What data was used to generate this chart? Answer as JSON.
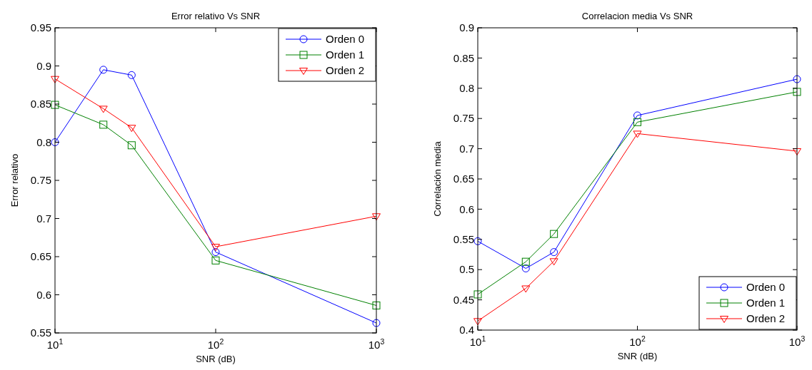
{
  "chart_data": [
    {
      "type": "line",
      "title": "Error relativo Vs SNR",
      "xlabel": "SNR (dB)",
      "ylabel": "Error relativo",
      "log": "x",
      "x": [
        10,
        20,
        30,
        100,
        1000
      ],
      "xlim": [
        10,
        1000
      ],
      "xticks": [
        {
          "value": 10,
          "label": "10$^{1}$"
        },
        {
          "value": 100,
          "label": "10$^{2}$"
        },
        {
          "value": 1000,
          "label": "10$^{3}$"
        }
      ],
      "ylim": [
        0.55,
        0.95
      ],
      "yticks": [
        0.55,
        0.6,
        0.65,
        0.7,
        0.75,
        0.8,
        0.85,
        0.9,
        0.95
      ],
      "grid": false,
      "legend": "top right",
      "series": [
        {
          "name": "Orden 0",
          "color": "#0000ff",
          "marker": "circle",
          "values": [
            0.8,
            0.895,
            0.888,
            0.656,
            0.563
          ]
        },
        {
          "name": "Orden 1",
          "color": "#008000",
          "marker": "square",
          "values": [
            0.849,
            0.823,
            0.796,
            0.645,
            0.586
          ]
        },
        {
          "name": "Orden 2",
          "color": "#ff0000",
          "marker": "triangle",
          "values": [
            0.883,
            0.844,
            0.819,
            0.663,
            0.703
          ]
        }
      ]
    },
    {
      "type": "line",
      "title": "Correlacion media Vs SNR",
      "xlabel": "SNR (dB)",
      "ylabel": "Correlación media",
      "log": "x",
      "x": [
        10,
        20,
        30,
        100,
        1000
      ],
      "xlim": [
        10,
        1000
      ],
      "xticks": [
        {
          "value": 10,
          "label": "10$^{1}$"
        },
        {
          "value": 100,
          "label": "10$^{2}$"
        },
        {
          "value": 1000,
          "label": "10$^{3}$"
        }
      ],
      "ylim": [
        0.4,
        0.9
      ],
      "yticks": [
        0.4,
        0.45,
        0.5,
        0.55,
        0.6,
        0.65,
        0.7,
        0.75,
        0.8,
        0.85,
        0.9
      ],
      "grid": false,
      "legend": "bottom right",
      "series": [
        {
          "name": "Orden 0",
          "color": "#0000ff",
          "marker": "circle",
          "values": [
            0.547,
            0.502,
            0.529,
            0.755,
            0.815
          ]
        },
        {
          "name": "Orden 1",
          "color": "#008000",
          "marker": "square",
          "values": [
            0.459,
            0.513,
            0.559,
            0.744,
            0.794
          ]
        },
        {
          "name": "Orden 2",
          "color": "#ff0000",
          "marker": "triangle",
          "values": [
            0.415,
            0.469,
            0.514,
            0.725,
            0.696
          ]
        }
      ]
    }
  ]
}
